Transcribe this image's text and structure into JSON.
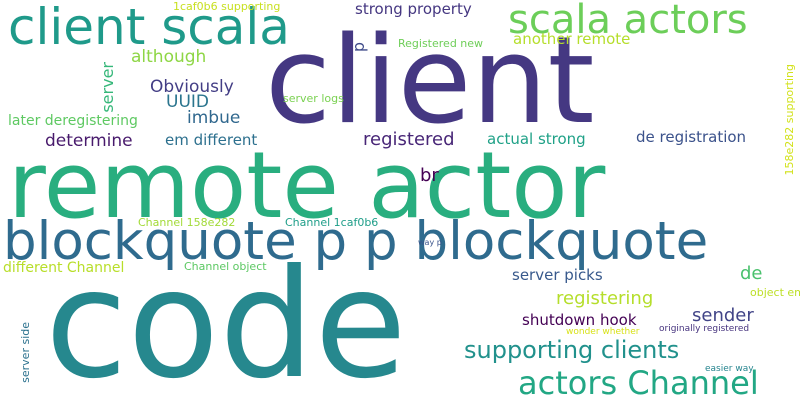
{
  "words": [
    {
      "text": "code",
      "color": "#26888e"
    },
    {
      "text": "remote actor",
      "color": "#29ae7f"
    },
    {
      "text": "client",
      "color": "#453882"
    },
    {
      "text": "blockquote p p blockquote",
      "color": "#2f6b8e"
    },
    {
      "text": "client scala",
      "color": "#1f9a8a"
    },
    {
      "text": "scala actors",
      "color": "#6cce59"
    },
    {
      "text": "actors Channel",
      "color": "#22a784"
    },
    {
      "text": "supporting clients",
      "color": "#21918c"
    },
    {
      "text": "strong property",
      "color": "#453781"
    },
    {
      "text": "another remote",
      "color": "#b5de2b"
    },
    {
      "text": "although",
      "color": "#8ed645"
    },
    {
      "text": "Obviously",
      "color": "#433e85"
    },
    {
      "text": "UUID",
      "color": "#2b758e"
    },
    {
      "text": "server",
      "color": "#35b779"
    },
    {
      "text": "imbue",
      "color": "#31688e"
    },
    {
      "text": "later deregistering",
      "color": "#5ec962"
    },
    {
      "text": "determine",
      "color": "#481a6c"
    },
    {
      "text": "em different",
      "color": "#2d708e"
    },
    {
      "text": "registered",
      "color": "#482677"
    },
    {
      "text": "actual strong",
      "color": "#1fa187"
    },
    {
      "text": "de registration",
      "color": "#3b528b"
    },
    {
      "text": "br",
      "color": "#440154"
    },
    {
      "text": "server logs",
      "color": "#7ad151"
    },
    {
      "text": "Registered new",
      "color": "#6ece58"
    },
    {
      "text": "p",
      "color": "#3e4a89"
    },
    {
      "text": "1caf0b6 supporting",
      "color": "#c8e020"
    },
    {
      "text": "158e282 supporting",
      "color": "#d2e21b"
    },
    {
      "text": "Channel 158e282",
      "color": "#a2da37"
    },
    {
      "text": "Channel 1caf0b6",
      "color": "#1f9e89"
    },
    {
      "text": "different Channel",
      "color": "#b8de29"
    },
    {
      "text": "Channel object",
      "color": "#5cc863"
    },
    {
      "text": "server picks",
      "color": "#38598c"
    },
    {
      "text": "de",
      "color": "#4ac16d"
    },
    {
      "text": "registering",
      "color": "#b5de2b"
    },
    {
      "text": "sender",
      "color": "#414487"
    },
    {
      "text": "shutdown hook",
      "color": "#440154"
    },
    {
      "text": "server side",
      "color": "#2c728e"
    },
    {
      "text": "object em",
      "color": "#bddf26"
    },
    {
      "text": "way p",
      "color": "#3a548c"
    },
    {
      "text": "wonder whether",
      "color": "#d8e219"
    },
    {
      "text": "originally registered",
      "color": "#46337e"
    },
    {
      "text": "easier way",
      "color": "#25848e"
    }
  ]
}
